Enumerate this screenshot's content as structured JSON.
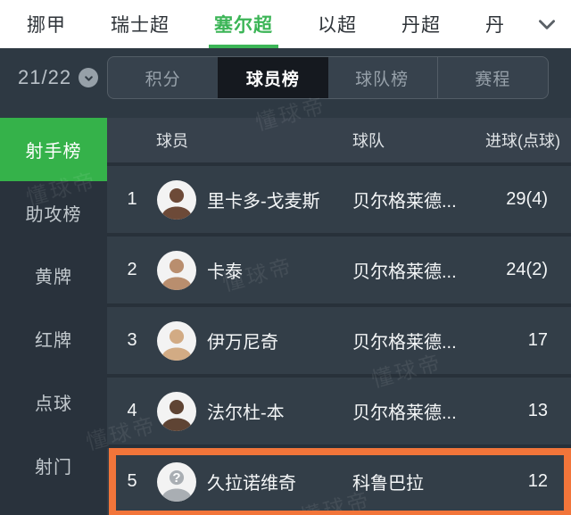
{
  "top_nav": {
    "tabs": [
      {
        "label": "挪甲",
        "active": false,
        "truncated": false
      },
      {
        "label": "瑞士超",
        "active": false,
        "truncated": false
      },
      {
        "label": "塞尔超",
        "active": true,
        "truncated": false
      },
      {
        "label": "以超",
        "active": false,
        "truncated": false
      },
      {
        "label": "丹超",
        "active": false,
        "truncated": false
      },
      {
        "label": "丹",
        "active": false,
        "truncated": true
      }
    ]
  },
  "season": {
    "label": "21/22"
  },
  "section_tabs": [
    {
      "label": "积分",
      "active": false
    },
    {
      "label": "球员榜",
      "active": true
    },
    {
      "label": "球队榜",
      "active": false
    },
    {
      "label": "赛程",
      "active": false
    }
  ],
  "sidebar": {
    "items": [
      {
        "label": "射手榜",
        "active": true
      },
      {
        "label": "助攻榜",
        "active": false
      },
      {
        "label": "黄牌",
        "active": false
      },
      {
        "label": "红牌",
        "active": false
      },
      {
        "label": "点球",
        "active": false
      },
      {
        "label": "射门",
        "active": false
      }
    ]
  },
  "table": {
    "headers": {
      "player": "球员",
      "team": "球队",
      "goals": "进球(点球)"
    },
    "rows": [
      {
        "rank": "1",
        "player": "里卡多-戈麦斯",
        "team": "贝尔格莱德...",
        "goals": "29(4)",
        "highlighted": false,
        "avatar": {
          "placeholder": false,
          "tone": "#6d4a38"
        }
      },
      {
        "rank": "2",
        "player": "卡泰",
        "team": "贝尔格莱德...",
        "goals": "24(2)",
        "highlighted": false,
        "avatar": {
          "placeholder": false,
          "tone": "#b98e6e"
        }
      },
      {
        "rank": "3",
        "player": "伊万尼奇",
        "team": "贝尔格莱德...",
        "goals": "17",
        "highlighted": false,
        "avatar": {
          "placeholder": false,
          "tone": "#d2ab84"
        }
      },
      {
        "rank": "4",
        "player": "法尔杜-本",
        "team": "贝尔格莱德...",
        "goals": "13",
        "highlighted": false,
        "avatar": {
          "placeholder": false,
          "tone": "#5f4434"
        }
      },
      {
        "rank": "5",
        "player": "久拉诺维奇",
        "team": "科鲁巴拉",
        "goals": "12",
        "highlighted": true,
        "avatar": {
          "placeholder": true,
          "tone": "#a9aeb3"
        }
      }
    ]
  },
  "watermark": "懂球帝",
  "colors": {
    "accent_green": "#3cb557",
    "sidebar_active_green": "#35b24a",
    "highlight_orange": "#f2753a",
    "selected_tab_bg": "#15191f",
    "page_dark": "#2e3943",
    "row_bg": "#333e48"
  }
}
